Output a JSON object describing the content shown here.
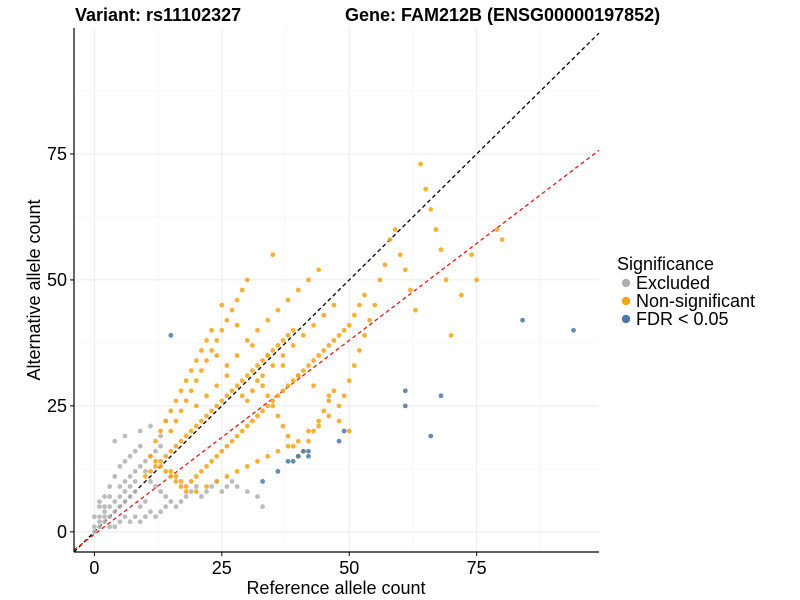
{
  "chart_data": {
    "type": "scatter",
    "title_left": "Variant: rs11102327",
    "title_right": "Gene: FAM212B (ENSG00000197852)",
    "xlabel": "Reference allele count",
    "ylabel": "Alternative allele count",
    "xlim": [
      -4,
      99
    ],
    "ylim": [
      -4,
      100
    ],
    "x_ticks": [
      0,
      25,
      50,
      75
    ],
    "y_ticks": [
      0,
      25,
      50,
      75
    ],
    "grid": true,
    "legend_placement": "right",
    "legend": {
      "title": "Significance",
      "items": [
        {
          "label": "Excluded",
          "color": "#b0b0b0"
        },
        {
          "label": "Non-significant",
          "color": "#f5a31a"
        },
        {
          "label": "FDR < 0.05",
          "color": "#4a78a8"
        }
      ]
    },
    "reference_lines": [
      {
        "name": "identity",
        "color": "#000000",
        "dash": "dashed",
        "slope": 1,
        "intercept": 0
      },
      {
        "name": "fit",
        "color": "#e31a1c",
        "dash": "dashed",
        "slope": 0.77,
        "intercept": -0.5
      }
    ],
    "series": [
      {
        "name": "Excluded",
        "color": "#b0b0b0",
        "points": [
          [
            0,
            0
          ],
          [
            0,
            1
          ],
          [
            1,
            1
          ],
          [
            1,
            2
          ],
          [
            1,
            3
          ],
          [
            2,
            2
          ],
          [
            2,
            3
          ],
          [
            2,
            4
          ],
          [
            3,
            3
          ],
          [
            3,
            5
          ],
          [
            4,
            4
          ],
          [
            4,
            6
          ],
          [
            5,
            5
          ],
          [
            5,
            7
          ],
          [
            6,
            6
          ],
          [
            6,
            8
          ],
          [
            7,
            7
          ],
          [
            7,
            9
          ],
          [
            8,
            8
          ],
          [
            8,
            10
          ],
          [
            2,
            7
          ],
          [
            3,
            9
          ],
          [
            4,
            11
          ],
          [
            5,
            13
          ],
          [
            6,
            14
          ],
          [
            7,
            15
          ],
          [
            8,
            16
          ],
          [
            9,
            17
          ],
          [
            4,
            18
          ],
          [
            6,
            19
          ],
          [
            9,
            20
          ],
          [
            11,
            21
          ],
          [
            13,
            19
          ],
          [
            14,
            22
          ],
          [
            10,
            12
          ],
          [
            11,
            10
          ],
          [
            12,
            9
          ],
          [
            13,
            8
          ],
          [
            14,
            7
          ],
          [
            15,
            6
          ],
          [
            16,
            5
          ],
          [
            17,
            6
          ],
          [
            18,
            7
          ],
          [
            19,
            8
          ],
          [
            20,
            9
          ],
          [
            21,
            7
          ],
          [
            22,
            8
          ],
          [
            23,
            9
          ],
          [
            24,
            10
          ],
          [
            25,
            8
          ],
          [
            26,
            9
          ],
          [
            27,
            10
          ],
          [
            28,
            9
          ],
          [
            30,
            8
          ],
          [
            33,
            5
          ],
          [
            32,
            7
          ],
          [
            10,
            6
          ],
          [
            9,
            5
          ],
          [
            11,
            4
          ],
          [
            12,
            3
          ],
          [
            13,
            4
          ],
          [
            14,
            5
          ],
          [
            8,
            3
          ],
          [
            9,
            2
          ],
          [
            10,
            3
          ],
          [
            7,
            2
          ],
          [
            6,
            3
          ],
          [
            5,
            2
          ],
          [
            4,
            1
          ],
          [
            3,
            1
          ],
          [
            1,
            5
          ],
          [
            2,
            5
          ],
          [
            0,
            3
          ],
          [
            1,
            6
          ],
          [
            3,
            7
          ],
          [
            5,
            9
          ],
          [
            6,
            10
          ],
          [
            7,
            11
          ],
          [
            8,
            12
          ],
          [
            9,
            13
          ],
          [
            10,
            14
          ],
          [
            11,
            15
          ],
          [
            12,
            16
          ],
          [
            13,
            17
          ]
        ]
      },
      {
        "name": "Non-significant",
        "color": "#f5a31a",
        "points": [
          [
            10,
            11
          ],
          [
            11,
            12
          ],
          [
            12,
            13
          ],
          [
            13,
            14
          ],
          [
            14,
            15
          ],
          [
            15,
            16
          ],
          [
            16,
            17
          ],
          [
            17,
            18
          ],
          [
            18,
            19
          ],
          [
            19,
            20
          ],
          [
            20,
            21
          ],
          [
            21,
            22
          ],
          [
            22,
            23
          ],
          [
            23,
            24
          ],
          [
            24,
            25
          ],
          [
            25,
            26
          ],
          [
            26,
            27
          ],
          [
            27,
            28
          ],
          [
            28,
            29
          ],
          [
            29,
            30
          ],
          [
            30,
            31
          ],
          [
            31,
            32
          ],
          [
            32,
            33
          ],
          [
            33,
            34
          ],
          [
            34,
            35
          ],
          [
            35,
            36
          ],
          [
            36,
            37
          ],
          [
            37,
            38
          ],
          [
            38,
            39
          ],
          [
            39,
            40
          ],
          [
            15,
            12
          ],
          [
            16,
            11
          ],
          [
            17,
            10
          ],
          [
            18,
            9
          ],
          [
            19,
            10
          ],
          [
            20,
            11
          ],
          [
            21,
            12
          ],
          [
            22,
            13
          ],
          [
            23,
            14
          ],
          [
            24,
            15
          ],
          [
            25,
            16
          ],
          [
            26,
            17
          ],
          [
            27,
            18
          ],
          [
            28,
            19
          ],
          [
            29,
            20
          ],
          [
            30,
            21
          ],
          [
            31,
            22
          ],
          [
            32,
            23
          ],
          [
            33,
            24
          ],
          [
            34,
            25
          ],
          [
            35,
            26
          ],
          [
            36,
            27
          ],
          [
            37,
            28
          ],
          [
            38,
            29
          ],
          [
            39,
            30
          ],
          [
            40,
            31
          ],
          [
            41,
            32
          ],
          [
            42,
            33
          ],
          [
            43,
            34
          ],
          [
            44,
            35
          ],
          [
            45,
            36
          ],
          [
            46,
            37
          ],
          [
            47,
            38
          ],
          [
            48,
            39
          ],
          [
            49,
            40
          ],
          [
            50,
            41
          ],
          [
            51,
            43
          ],
          [
            52,
            45
          ],
          [
            53,
            47
          ],
          [
            15,
            20
          ],
          [
            16,
            22
          ],
          [
            17,
            24
          ],
          [
            18,
            26
          ],
          [
            19,
            28
          ],
          [
            20,
            30
          ],
          [
            21,
            32
          ],
          [
            22,
            34
          ],
          [
            23,
            36
          ],
          [
            24,
            38
          ],
          [
            25,
            40
          ],
          [
            26,
            42
          ],
          [
            27,
            44
          ],
          [
            28,
            46
          ],
          [
            29,
            48
          ],
          [
            30,
            50
          ],
          [
            35,
            55
          ],
          [
            32,
            30
          ],
          [
            33,
            29
          ],
          [
            34,
            27
          ],
          [
            35,
            25
          ],
          [
            36,
            23
          ],
          [
            37,
            21
          ],
          [
            38,
            19
          ],
          [
            39,
            17
          ],
          [
            40,
            15
          ],
          [
            41,
            16
          ],
          [
            42,
            18
          ],
          [
            43,
            20
          ],
          [
            44,
            22
          ],
          [
            45,
            24
          ],
          [
            46,
            26
          ],
          [
            47,
            28
          ],
          [
            48,
            25
          ],
          [
            49,
            27
          ],
          [
            50,
            30
          ],
          [
            51,
            33
          ],
          [
            52,
            36
          ],
          [
            53,
            39
          ],
          [
            54,
            42
          ],
          [
            55,
            45
          ],
          [
            56,
            50
          ],
          [
            57,
            53
          ],
          [
            58,
            58
          ],
          [
            59,
            60
          ],
          [
            60,
            55
          ],
          [
            61,
            52
          ],
          [
            62,
            48
          ],
          [
            63,
            44
          ],
          [
            64,
            73
          ],
          [
            65,
            68
          ],
          [
            66,
            64
          ],
          [
            67,
            60
          ],
          [
            68,
            56
          ],
          [
            69,
            50
          ],
          [
            70,
            39
          ],
          [
            72,
            47
          ],
          [
            74,
            55
          ],
          [
            75,
            50
          ],
          [
            79,
            60
          ],
          [
            80,
            58
          ],
          [
            25,
            45
          ],
          [
            28,
            41
          ],
          [
            31,
            37
          ],
          [
            34,
            35
          ],
          [
            37,
            33
          ],
          [
            40,
            31
          ],
          [
            43,
            29
          ],
          [
            46,
            27
          ],
          [
            48,
            22
          ],
          [
            50,
            20
          ],
          [
            12,
            18
          ],
          [
            13,
            20
          ],
          [
            14,
            22
          ],
          [
            15,
            24
          ],
          [
            16,
            26
          ],
          [
            17,
            28
          ],
          [
            18,
            30
          ],
          [
            19,
            32
          ],
          [
            20,
            34
          ],
          [
            21,
            36
          ],
          [
            22,
            38
          ],
          [
            23,
            40
          ],
          [
            24,
            35
          ],
          [
            26,
            31
          ],
          [
            29,
            27
          ],
          [
            11,
            15
          ],
          [
            12,
            14
          ],
          [
            13,
            13
          ],
          [
            14,
            12
          ],
          [
            15,
            11
          ],
          [
            16,
            10
          ],
          [
            17,
            9
          ],
          [
            18,
            8
          ],
          [
            20,
            8
          ],
          [
            22,
            9
          ],
          [
            24,
            10
          ],
          [
            26,
            11
          ],
          [
            28,
            12
          ],
          [
            30,
            13
          ],
          [
            32,
            14
          ],
          [
            34,
            15
          ],
          [
            36,
            16
          ],
          [
            38,
            17
          ],
          [
            40,
            18
          ],
          [
            42,
            20
          ],
          [
            44,
            21
          ],
          [
            46,
            23
          ],
          [
            20,
            25
          ],
          [
            22,
            27
          ],
          [
            24,
            29
          ],
          [
            26,
            33
          ],
          [
            28,
            35
          ],
          [
            30,
            38
          ],
          [
            32,
            40
          ],
          [
            34,
            42
          ],
          [
            36,
            44
          ],
          [
            38,
            46
          ],
          [
            40,
            48
          ],
          [
            42,
            50
          ],
          [
            44,
            52
          ],
          [
            30,
            26
          ],
          [
            31,
            28
          ],
          [
            33,
            31
          ],
          [
            35,
            33
          ],
          [
            37,
            35
          ],
          [
            39,
            37
          ],
          [
            41,
            39
          ],
          [
            43,
            41
          ],
          [
            45,
            43
          ],
          [
            47,
            45
          ]
        ]
      },
      {
        "name": "FDR < 0.05",
        "color": "#4a78a8",
        "points": [
          [
            15,
            39
          ],
          [
            84,
            42
          ],
          [
            94,
            40
          ],
          [
            68,
            27
          ],
          [
            61,
            28
          ],
          [
            61,
            25
          ],
          [
            66,
            19
          ],
          [
            48,
            18
          ],
          [
            49,
            20
          ],
          [
            41,
            16
          ],
          [
            40,
            15
          ],
          [
            38,
            14
          ],
          [
            39,
            14
          ],
          [
            42,
            15
          ],
          [
            42,
            16
          ],
          [
            36,
            12
          ],
          [
            33,
            10
          ]
        ]
      }
    ]
  }
}
